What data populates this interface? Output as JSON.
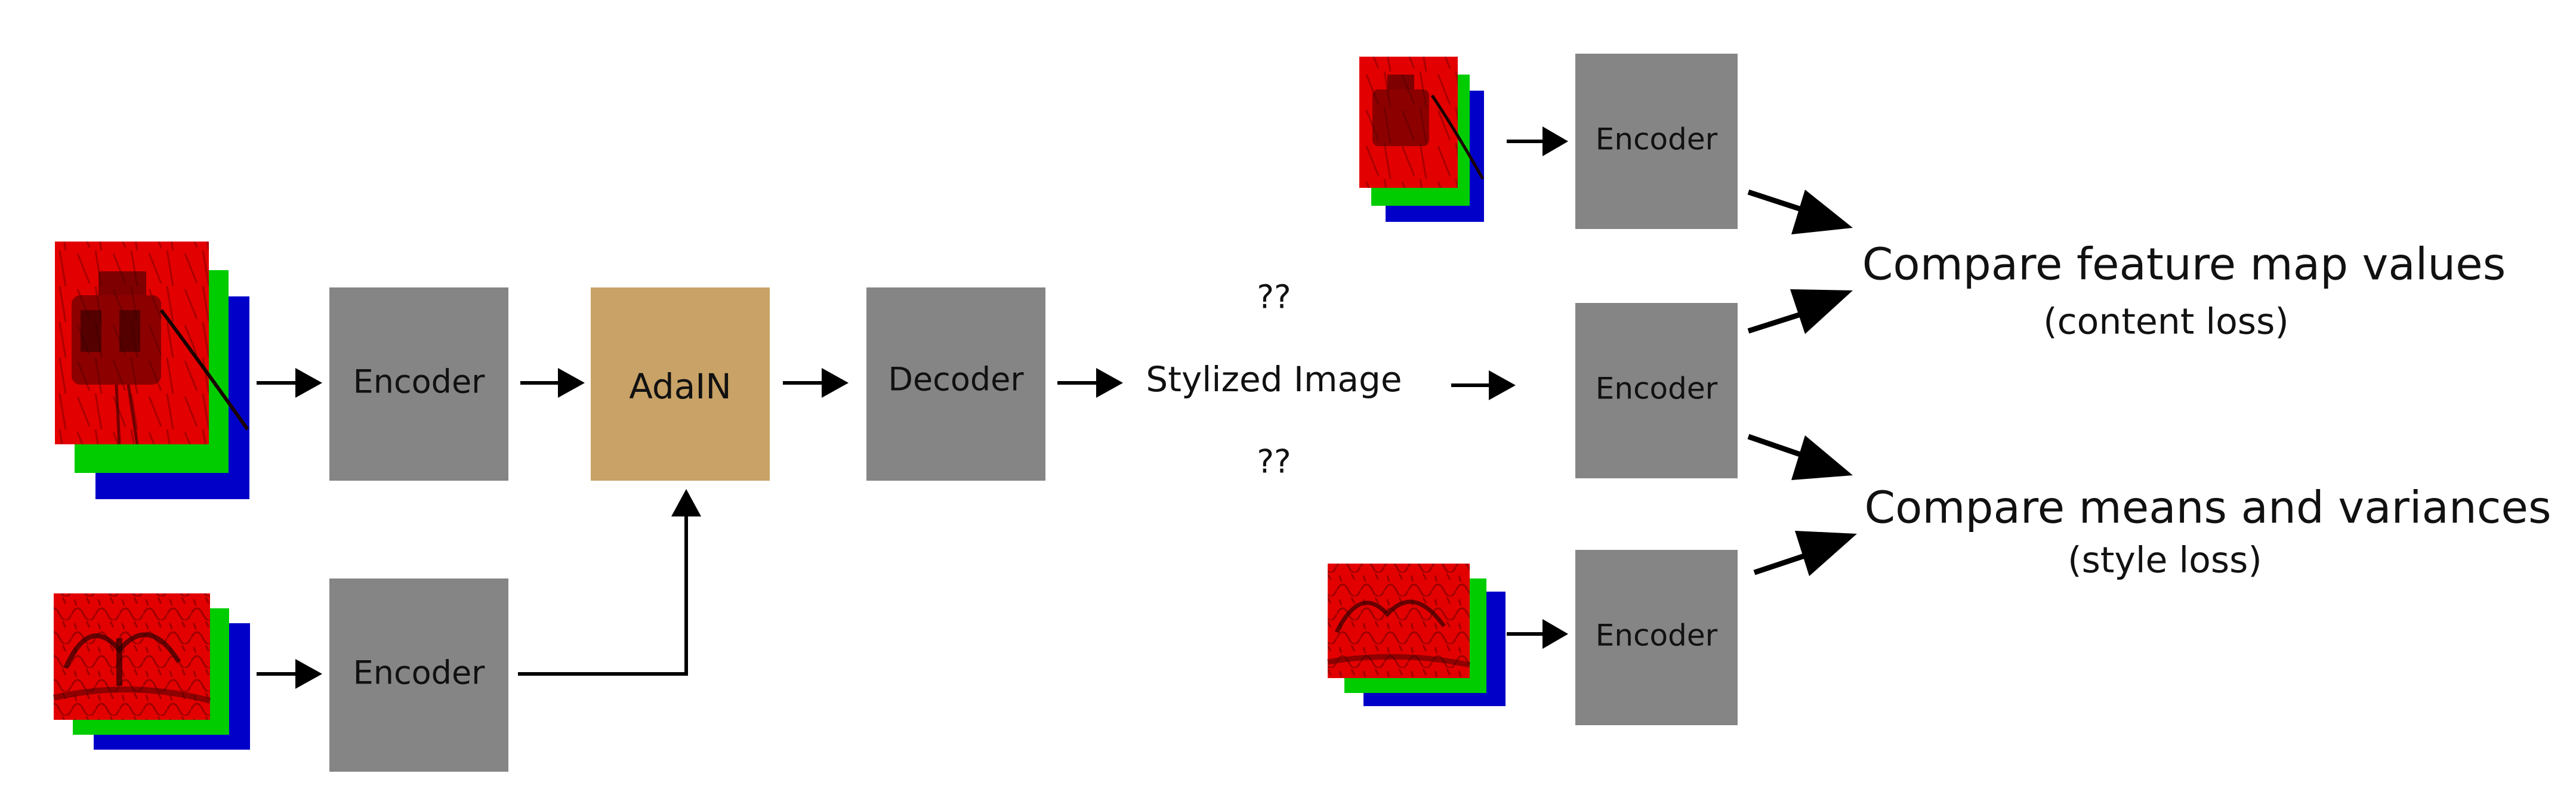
{
  "colors": {
    "block_gray": "#858585",
    "adain_tan": "#c8a266",
    "channel_red": "#e30000",
    "channel_green": "#00cc00",
    "channel_blue": "#0000c8",
    "arrow": "#000000"
  },
  "pipeline": {
    "content_encoder": "Encoder",
    "style_encoder": "Encoder",
    "adain": "AdaIN",
    "decoder": "Decoder",
    "stylized_image": "Stylized Image",
    "unknown_top": "??",
    "unknown_bottom": "??"
  },
  "loss_encoders": {
    "content_ref": "Encoder",
    "stylized": "Encoder",
    "style_ref": "Encoder"
  },
  "losses": {
    "content_title": "Compare feature map values",
    "content_sub": "(content loss)",
    "style_title": "Compare means and variances",
    "style_sub": "(style loss)"
  }
}
